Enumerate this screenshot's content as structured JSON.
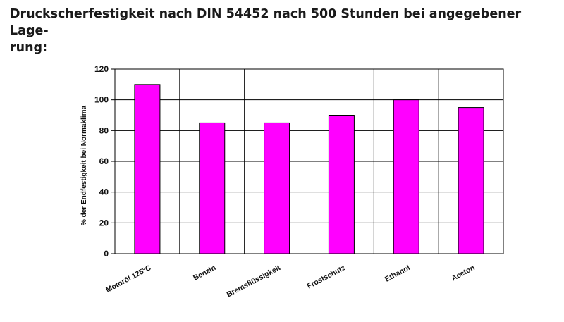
{
  "heading": {
    "line1": "Druckscherfestigkeit nach DIN 54452 nach 500 Stunden bei angegebener Lage-",
    "line2": "rung:"
  },
  "chart_data": {
    "type": "bar",
    "categories": [
      "Motoröl 125°C",
      "Benzin",
      "Bremsflüssigkeit",
      "Frostschutz",
      "Ethanol",
      "Aceton"
    ],
    "values": [
      110,
      85,
      85,
      90,
      100,
      95
    ],
    "ylabel": "% der Endfestigkeit bei Normaklima",
    "xlabel": "",
    "ylim": [
      0,
      120
    ],
    "yticks": [
      0,
      20,
      40,
      60,
      80,
      100,
      120
    ],
    "grid": true,
    "legend": "none",
    "colors": {
      "bar": "#ff00ff",
      "bar_edge": "#000000",
      "grid": "#000000"
    }
  }
}
